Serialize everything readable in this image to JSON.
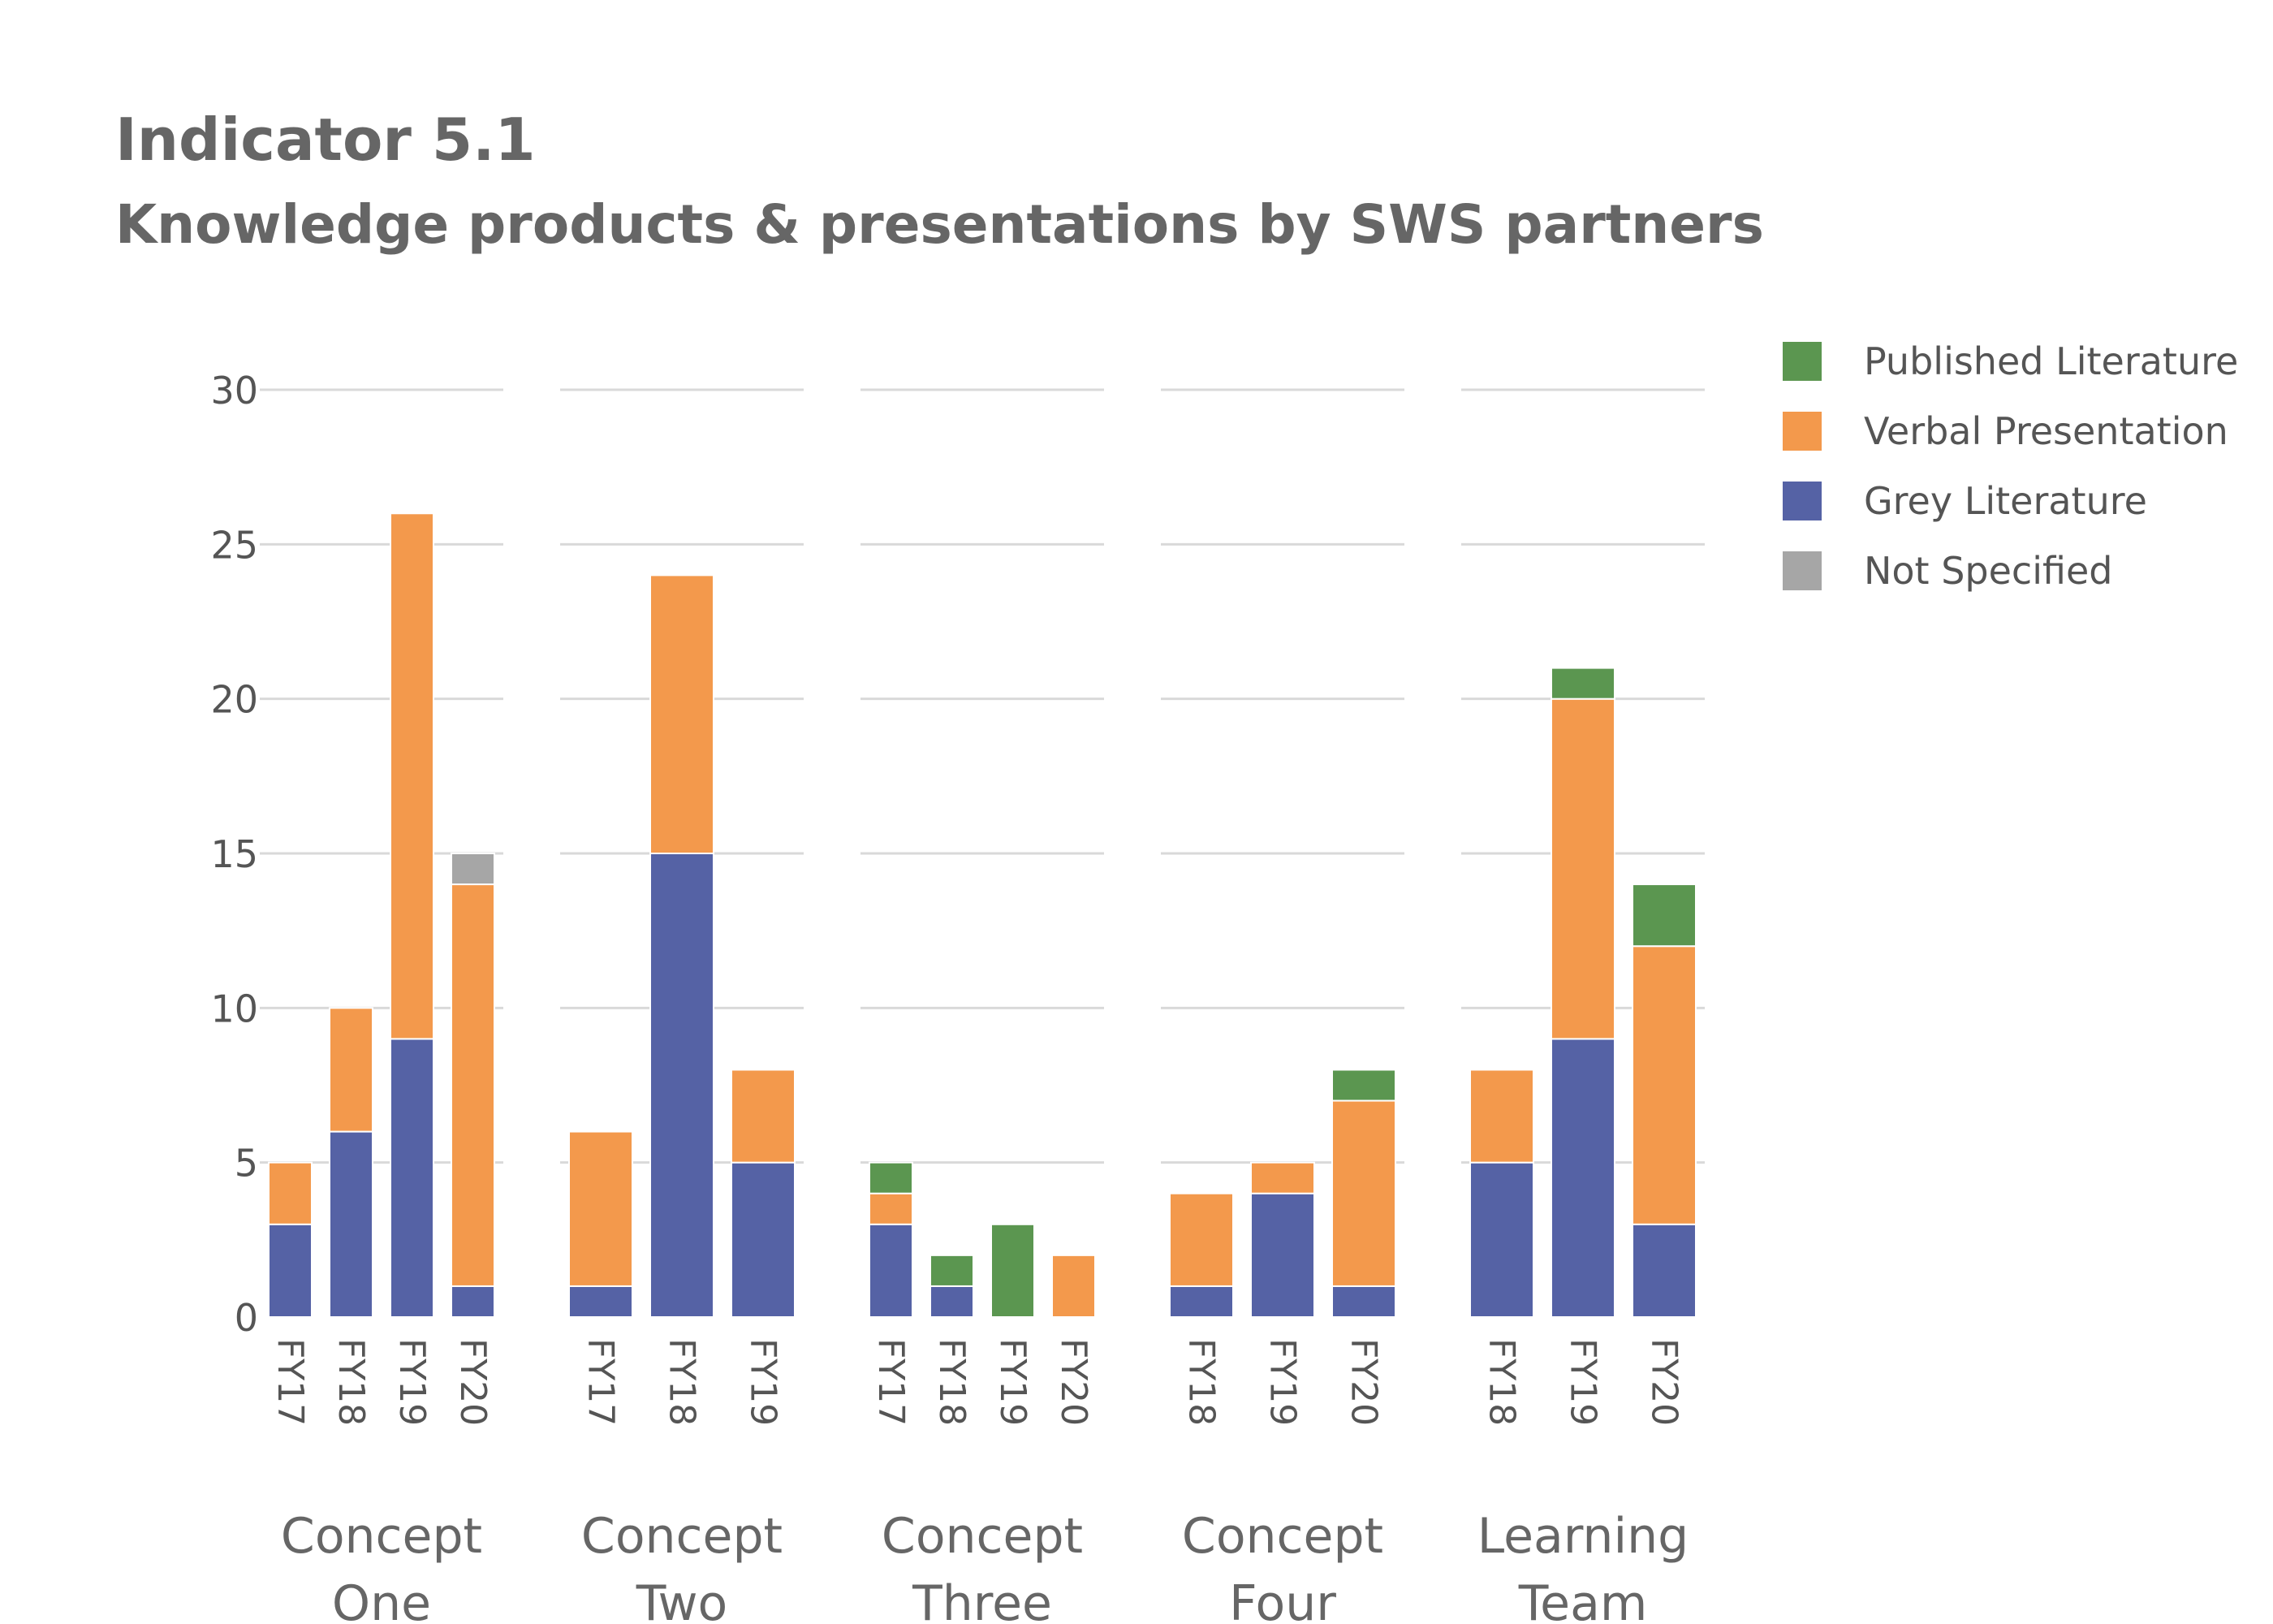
{
  "title": "Indicator 5.1",
  "subtitle": "Knowledge products & presentations by SWS partners",
  "chart_data": {
    "type": "bar",
    "stacked": true,
    "title": "Indicator 5.1",
    "subtitle": "Knowledge products & presentations by SWS partners",
    "xlabel": "",
    "ylabel": "",
    "ylim": [
      0,
      30
    ],
    "yticks": [
      0,
      5,
      10,
      15,
      20,
      25,
      30
    ],
    "grid": true,
    "legend_position": "top-right",
    "series_order": [
      "Grey Literature",
      "Verbal Presentation",
      "Published Literature",
      "Not Specified"
    ],
    "legend": [
      {
        "name": "Published Literature",
        "color": "#5b9650"
      },
      {
        "name": "Verbal Presentation",
        "color": "#f3994c"
      },
      {
        "name": "Grey Literature",
        "color": "#5562a5"
      },
      {
        "name": "Not Specified",
        "color": "#a6a6a6"
      }
    ],
    "groups": [
      {
        "line1": "Concept",
        "line2": "One",
        "bars": [
          {
            "label": "FY17",
            "values": {
              "Grey Literature": 3,
              "Verbal Presentation": 2,
              "Published Literature": 0,
              "Not Specified": 0
            }
          },
          {
            "label": "FY18",
            "values": {
              "Grey Literature": 6,
              "Verbal Presentation": 4,
              "Published Literature": 0,
              "Not Specified": 0
            }
          },
          {
            "label": "FY19",
            "values": {
              "Grey Literature": 9,
              "Verbal Presentation": 17,
              "Published Literature": 0,
              "Not Specified": 0
            }
          },
          {
            "label": "FY20",
            "values": {
              "Grey Literature": 1,
              "Verbal Presentation": 13,
              "Published Literature": 0,
              "Not Specified": 1
            }
          }
        ]
      },
      {
        "line1": "Concept",
        "line2": "Two",
        "bars": [
          {
            "label": "FY17",
            "values": {
              "Grey Literature": 1,
              "Verbal Presentation": 5,
              "Published Literature": 0,
              "Not Specified": 0
            }
          },
          {
            "label": "FY18",
            "values": {
              "Grey Literature": 15,
              "Verbal Presentation": 9,
              "Published Literature": 0,
              "Not Specified": 0
            }
          },
          {
            "label": "FY19",
            "values": {
              "Grey Literature": 5,
              "Verbal Presentation": 3,
              "Published Literature": 0,
              "Not Specified": 0
            }
          }
        ]
      },
      {
        "line1": "Concept",
        "line2": "Three",
        "bars": [
          {
            "label": "FY17",
            "values": {
              "Grey Literature": 3,
              "Verbal Presentation": 1,
              "Published Literature": 1,
              "Not Specified": 0
            }
          },
          {
            "label": "FY18",
            "values": {
              "Grey Literature": 1,
              "Verbal Presentation": 0,
              "Published Literature": 1,
              "Not Specified": 0
            }
          },
          {
            "label": "FY19",
            "values": {
              "Grey Literature": 0,
              "Verbal Presentation": 0,
              "Published Literature": 3,
              "Not Specified": 0
            }
          },
          {
            "label": "FY20",
            "values": {
              "Grey Literature": 0,
              "Verbal Presentation": 2,
              "Published Literature": 0,
              "Not Specified": 0
            }
          }
        ]
      },
      {
        "line1": "Concept",
        "line2": "Four",
        "bars": [
          {
            "label": "FY18",
            "values": {
              "Grey Literature": 1,
              "Verbal Presentation": 3,
              "Published Literature": 0,
              "Not Specified": 0
            }
          },
          {
            "label": "FY19",
            "values": {
              "Grey Literature": 4,
              "Verbal Presentation": 1,
              "Published Literature": 0,
              "Not Specified": 0
            }
          },
          {
            "label": "FY20",
            "values": {
              "Grey Literature": 1,
              "Verbal Presentation": 6,
              "Published Literature": 1,
              "Not Specified": 0
            }
          }
        ]
      },
      {
        "line1": "Learning",
        "line2": "Team",
        "bars": [
          {
            "label": "FY18",
            "values": {
              "Grey Literature": 5,
              "Verbal Presentation": 3,
              "Published Literature": 0,
              "Not Specified": 0
            }
          },
          {
            "label": "FY19",
            "values": {
              "Grey Literature": 9,
              "Verbal Presentation": 11,
              "Published Literature": 1,
              "Not Specified": 0
            }
          },
          {
            "label": "FY20",
            "values": {
              "Grey Literature": 3,
              "Verbal Presentation": 9,
              "Published Literature": 2,
              "Not Specified": 0
            }
          }
        ]
      }
    ]
  }
}
